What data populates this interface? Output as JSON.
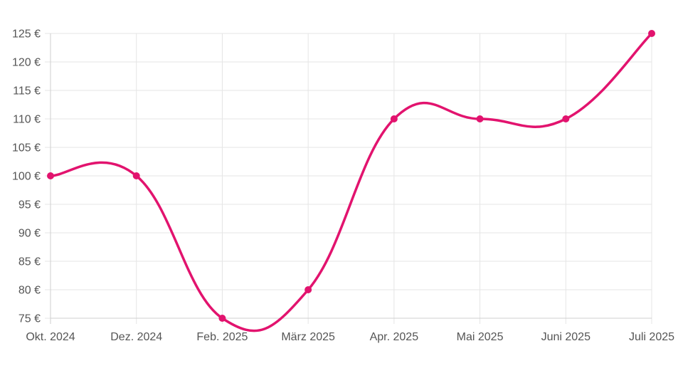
{
  "colors": {
    "series": "#e2136e",
    "grid": "#e5e5e5",
    "text": "#555555"
  },
  "chart_data": {
    "type": "line",
    "title": "",
    "xlabel": "",
    "ylabel": "",
    "categories": [
      "Okt. 2024",
      "Dez. 2024",
      "Feb. 2025",
      "März 2025",
      "Apr. 2025",
      "Mai 2025",
      "Juni 2025",
      "Juli 2025"
    ],
    "series": [
      {
        "values": [
          100,
          100,
          75,
          80,
          110,
          110,
          110,
          125
        ]
      }
    ],
    "ylim": [
      75,
      125
    ],
    "yticks": [
      75,
      80,
      85,
      90,
      95,
      100,
      105,
      110,
      115,
      120,
      125
    ],
    "ytick_labels": [
      "75 €",
      "80 €",
      "85 €",
      "90 €",
      "95 €",
      "100 €",
      "105 €",
      "110 €",
      "115 €",
      "120 €",
      "125 €"
    ],
    "grid": true,
    "curve": "smooth",
    "markers": true,
    "legend": "none"
  }
}
